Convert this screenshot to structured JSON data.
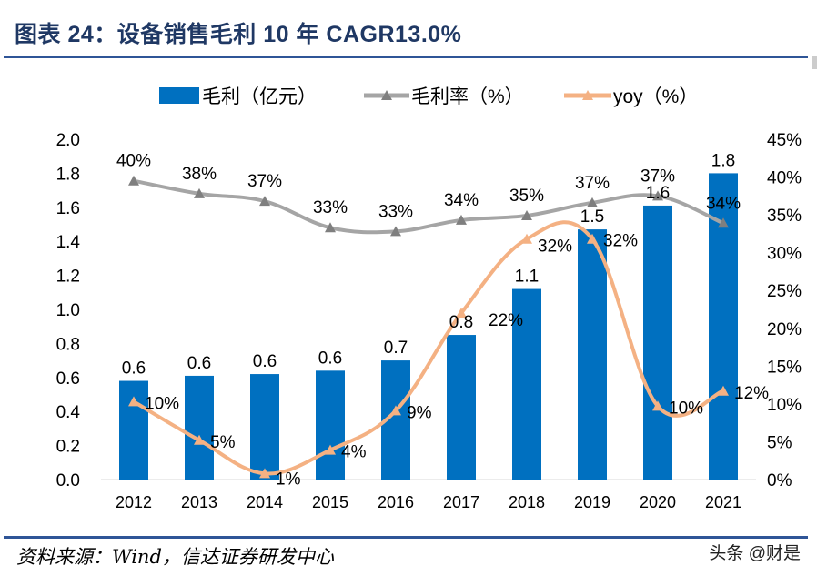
{
  "title": "图表 24：设备销售毛利 10 年 CAGR13.0%",
  "source": "资料来源：Wind，信达证券研发中心",
  "watermark": "头条 @财是",
  "chart_data": {
    "type": "bar+line",
    "categories": [
      "2012",
      "2013",
      "2014",
      "2015",
      "2016",
      "2017",
      "2018",
      "2019",
      "2020",
      "2021"
    ],
    "legend_position": "top",
    "grid": false,
    "y_left": {
      "min": 0,
      "max": 2.0,
      "ticks": [
        "0.0",
        "0.2",
        "0.4",
        "0.6",
        "0.8",
        "1.0",
        "1.2",
        "1.4",
        "1.6",
        "1.8",
        "2.0"
      ]
    },
    "y_right": {
      "min": 0,
      "max": 45,
      "ticks": [
        "0%",
        "5%",
        "10%",
        "15%",
        "20%",
        "25%",
        "30%",
        "35%",
        "40%",
        "45%"
      ]
    },
    "series": [
      {
        "name": "毛利（亿元）",
        "type": "bar",
        "axis": "left",
        "color": "#0070c0",
        "values": [
          0.58,
          0.61,
          0.62,
          0.64,
          0.7,
          0.85,
          1.12,
          1.47,
          1.61,
          1.8
        ],
        "labels": [
          "0.6",
          "0.6",
          "0.6",
          "0.6",
          "0.7",
          "0.8",
          "1.1",
          "1.5",
          "1.6",
          "1.8"
        ]
      },
      {
        "name": "毛利率（%）",
        "type": "line",
        "axis": "right",
        "color": "#a5a5a5",
        "marker": "triangle",
        "values": [
          39.5,
          37.8,
          36.8,
          33.3,
          32.8,
          34.3,
          34.9,
          36.6,
          37.5,
          33.9
        ],
        "labels": [
          "40%",
          "38%",
          "37%",
          "33%",
          "33%",
          "34%",
          "35%",
          "37%",
          "37%",
          "34%"
        ]
      },
      {
        "name": "yoy（%）",
        "type": "line",
        "axis": "right",
        "color": "#f4b183",
        "marker": "triangle",
        "values": [
          10.3,
          5.2,
          0.8,
          3.9,
          9.1,
          22.0,
          31.8,
          31.8,
          9.7,
          11.7
        ],
        "labels": [
          "10%",
          "5%",
          "1%",
          "4%",
          "9%",
          "22%",
          "32%",
          "32%",
          "10%",
          "12%"
        ]
      }
    ]
  }
}
